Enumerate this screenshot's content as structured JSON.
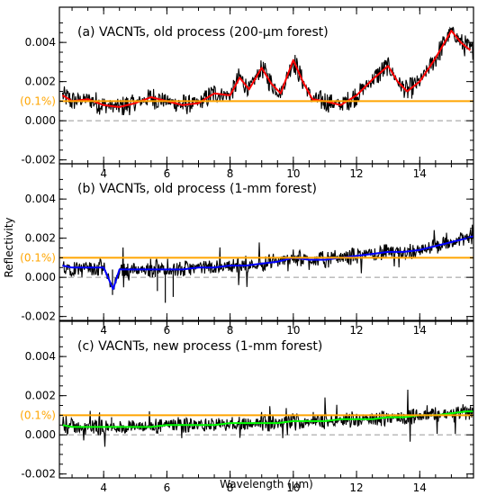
{
  "figure": {
    "ylabel": "Reflectivity",
    "xlabel": "Wavelength (μm)",
    "xlim": [
      2.6,
      15.7
    ],
    "ylim": [
      -0.0022,
      0.0058
    ],
    "x_ticks": [
      4,
      6,
      8,
      10,
      12,
      14
    ],
    "y_ticks": [
      -0.002,
      0.0,
      0.002,
      0.004
    ],
    "y_tick_labels": [
      "-0.002",
      "0.000",
      "0.002",
      "0.004"
    ],
    "x_tick_labels": [
      "4",
      "6",
      "8",
      "10",
      "12",
      "14"
    ],
    "threshold_label": "(0.1%)",
    "threshold_value": 0.001,
    "threshold_color": "#FFA500",
    "zero_line_style": "dashed gray"
  },
  "chart_data": [
    {
      "type": "line",
      "title": "(a) VACNTs, old process (200-μm forest)",
      "series": [
        {
          "color": "#FF0000",
          "x": [
            2.7,
            3.0,
            3.5,
            4.0,
            4.5,
            5.0,
            5.5,
            6.0,
            6.5,
            7.0,
            7.5,
            8.0,
            8.3,
            8.6,
            9.0,
            9.3,
            9.6,
            10.0,
            10.3,
            10.6,
            11.0,
            11.5,
            12.0,
            12.5,
            13.0,
            13.3,
            13.6,
            14.0,
            14.5,
            15.0,
            15.3,
            15.6
          ],
          "values": [
            0.0013,
            0.001,
            0.0011,
            0.0008,
            0.0007,
            0.0009,
            0.0012,
            0.001,
            0.0008,
            0.0009,
            0.0014,
            0.0013,
            0.0022,
            0.0016,
            0.0027,
            0.0019,
            0.0014,
            0.0031,
            0.002,
            0.0011,
            0.001,
            0.0008,
            0.0013,
            0.0021,
            0.0028,
            0.002,
            0.0015,
            0.002,
            0.0032,
            0.0046,
            0.004,
            0.0036
          ]
        }
      ]
    },
    {
      "type": "line",
      "title": "(b) VACNTs, old process (1-mm forest)",
      "series": [
        {
          "color": "#0000FF",
          "x": [
            2.7,
            3.0,
            3.5,
            4.0,
            4.3,
            4.5,
            5.0,
            5.5,
            6.0,
            6.5,
            7.0,
            7.5,
            8.0,
            8.5,
            9.0,
            9.5,
            10.0,
            10.5,
            11.0,
            11.5,
            12.0,
            12.5,
            13.0,
            13.5,
            14.0,
            14.5,
            15.0,
            15.5,
            15.7
          ],
          "values": [
            0.0006,
            0.0005,
            0.0005,
            0.0005,
            -0.0006,
            0.0004,
            0.0004,
            0.0004,
            0.0004,
            0.0004,
            0.0005,
            0.0005,
            0.0006,
            0.0006,
            0.0007,
            0.0008,
            0.001,
            0.0009,
            0.0009,
            0.001,
            0.0011,
            0.0012,
            0.0013,
            0.0013,
            0.0014,
            0.0016,
            0.0018,
            0.002,
            0.0021
          ]
        }
      ]
    },
    {
      "type": "line",
      "title": "(c) VACNTs, new process (1-mm forest)",
      "series": [
        {
          "color": "#00FF00",
          "x": [
            2.7,
            3.0,
            3.5,
            4.0,
            4.5,
            5.0,
            5.5,
            6.0,
            6.5,
            7.0,
            7.5,
            8.0,
            8.5,
            9.0,
            9.5,
            10.0,
            10.5,
            11.0,
            11.5,
            12.0,
            12.5,
            13.0,
            13.5,
            14.0,
            14.5,
            15.0,
            15.5,
            15.7
          ],
          "values": [
            0.0005,
            0.0004,
            0.0004,
            0.0004,
            0.0004,
            0.0004,
            0.0004,
            0.0005,
            0.0005,
            0.0005,
            0.0005,
            0.0006,
            0.0006,
            0.0006,
            0.0006,
            0.0007,
            0.0007,
            0.0007,
            0.0008,
            0.0008,
            0.0008,
            0.0009,
            0.0009,
            0.001,
            0.001,
            0.0011,
            0.0012,
            0.0012
          ]
        }
      ]
    }
  ]
}
